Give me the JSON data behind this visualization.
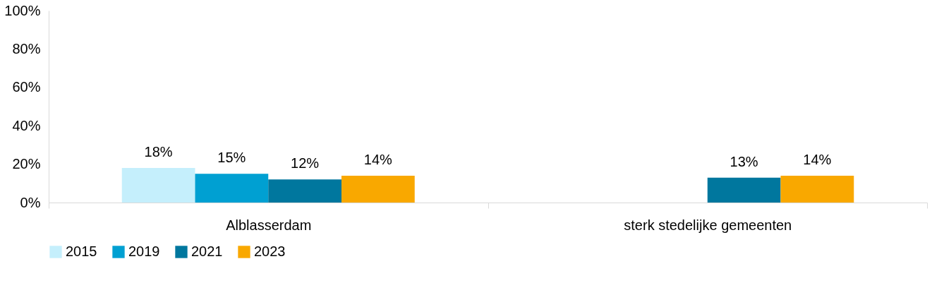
{
  "chart_data": {
    "type": "bar",
    "categories": [
      "Alblasserdam",
      "sterk stedelijke gemeenten"
    ],
    "series": [
      {
        "name": "2015",
        "color": "#c5effc",
        "values": [
          18,
          null
        ],
        "value_labels": [
          "18%",
          null
        ]
      },
      {
        "name": "2019",
        "color": "#00a0d2",
        "values": [
          15,
          null
        ],
        "value_labels": [
          "15%",
          null
        ]
      },
      {
        "name": "2021",
        "color": "#00779e",
        "values": [
          12,
          13
        ],
        "value_labels": [
          "12%",
          "13%"
        ]
      },
      {
        "name": "2023",
        "color": "#f9a800",
        "values": [
          14,
          14
        ],
        "value_labels": [
          "14%",
          "14%"
        ]
      }
    ],
    "ylim": [
      0,
      100
    ],
    "yticks": [
      {
        "value": 0,
        "label": "0%"
      },
      {
        "value": 20,
        "label": "20%"
      },
      {
        "value": 40,
        "label": "40%"
      },
      {
        "value": 60,
        "label": "60%"
      },
      {
        "value": 80,
        "label": "80%"
      },
      {
        "value": 100,
        "label": "100%"
      }
    ],
    "grid": false,
    "legend": "bottom"
  }
}
